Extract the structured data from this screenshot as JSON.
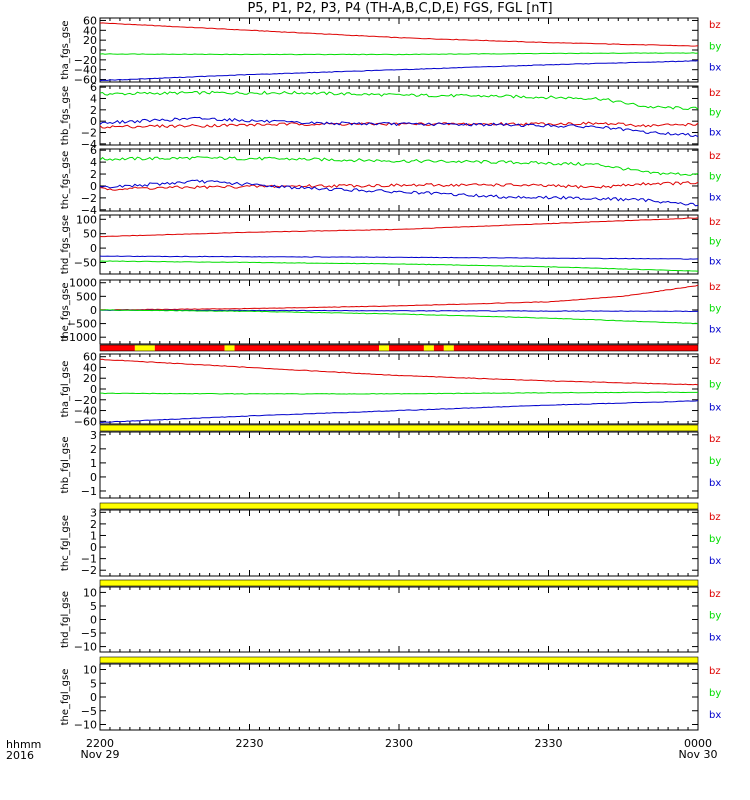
{
  "title": "P5, P1, P2, P3, P4 (TH-A,B,C,D,E) FGS, FGL [nT]",
  "colors": {
    "bz": "#dd0000",
    "by": "#00dd00",
    "bx": "#0000cc",
    "flag_red": "#ff0000",
    "flag_yellow": "#ffff00"
  },
  "legend": [
    "bz",
    "by",
    "bx"
  ],
  "x_axis": {
    "row_label_1": "hhmm",
    "row_label_2": "2016",
    "ticks": [
      {
        "t": 0,
        "label": "2200",
        "date": "Nov 29"
      },
      {
        "t": 30,
        "label": "2230",
        "date": ""
      },
      {
        "t": 60,
        "label": "2300",
        "date": ""
      },
      {
        "t": 90,
        "label": "2330",
        "date": ""
      },
      {
        "t": 120,
        "label": "0000",
        "date": "Nov 30"
      }
    ]
  },
  "chart_data": [
    {
      "type": "line",
      "ylabel": "tha_fgs_gse",
      "ylim": [
        -65,
        65
      ],
      "yticks": [
        60,
        40,
        20,
        0,
        -20,
        -40,
        -60
      ],
      "yticklabels": [
        "60",
        "40",
        "20",
        "0",
        "−20",
        "−40",
        "−60"
      ],
      "series": [
        {
          "name": "bz",
          "x": [
            0,
            30,
            60,
            90,
            120
          ],
          "y": [
            55,
            40,
            25,
            15,
            8
          ]
        },
        {
          "name": "by",
          "x": [
            0,
            30,
            60,
            90,
            120
          ],
          "y": [
            -8,
            -9,
            -9,
            -7,
            -6
          ]
        },
        {
          "name": "bx",
          "x": [
            0,
            30,
            60,
            90,
            120
          ],
          "y": [
            -62,
            -50,
            -40,
            -30,
            -22
          ]
        }
      ]
    },
    {
      "type": "line",
      "ylabel": "thb_fgs_gse",
      "ylim": [
        -4.2,
        6.2
      ],
      "yticks": [
        6,
        4,
        2,
        0,
        -2,
        -4
      ],
      "yticklabels": [
        "6",
        "4",
        "2",
        "0",
        "−2",
        "−4"
      ],
      "series": [
        {
          "name": "by",
          "x": [
            0,
            20,
            40,
            60,
            80,
            100,
            110,
            120
          ],
          "y": [
            4.8,
            5.0,
            5.0,
            4.6,
            4.4,
            4.0,
            2.5,
            2.2
          ]
        },
        {
          "name": "bz",
          "x": [
            0,
            20,
            40,
            60,
            80,
            100,
            110,
            120
          ],
          "y": [
            -1.0,
            -0.8,
            -0.5,
            -0.5,
            -0.5,
            -0.4,
            -0.8,
            -0.5
          ]
        },
        {
          "name": "bx",
          "x": [
            0,
            20,
            40,
            60,
            80,
            100,
            110,
            120
          ],
          "y": [
            -0.3,
            0.5,
            -0.3,
            -0.5,
            -0.6,
            -1.0,
            -2.0,
            -2.5
          ]
        }
      ]
    },
    {
      "type": "line",
      "ylabel": "thc_fgs_gse",
      "ylim": [
        -4.2,
        6.2
      ],
      "yticks": [
        6,
        4,
        2,
        0,
        -2,
        -4
      ],
      "yticklabels": [
        "6",
        "4",
        "2",
        "0",
        "−2",
        "−4"
      ],
      "series": [
        {
          "name": "by",
          "x": [
            0,
            20,
            40,
            60,
            80,
            100,
            110,
            120
          ],
          "y": [
            4.5,
            4.7,
            4.5,
            4.2,
            4.0,
            3.6,
            2.2,
            1.9
          ]
        },
        {
          "name": "bz",
          "x": [
            0,
            20,
            40,
            60,
            80,
            100,
            110,
            120
          ],
          "y": [
            -0.5,
            -0.2,
            0.0,
            0.1,
            0.2,
            -0.2,
            0.4,
            0.5
          ]
        },
        {
          "name": "bx",
          "x": [
            0,
            20,
            40,
            60,
            80,
            100,
            110,
            120
          ],
          "y": [
            -0.3,
            0.8,
            -0.3,
            -1.0,
            -1.8,
            -2.1,
            -2.4,
            -3.2
          ]
        }
      ]
    },
    {
      "type": "line",
      "ylabel": "thd_fgs_gse",
      "ylim": [
        -90,
        115
      ],
      "yticks": [
        100,
        50,
        0,
        -50
      ],
      "yticklabels": [
        "100",
        "50",
        "0",
        "−50"
      ],
      "series": [
        {
          "name": "bz",
          "x": [
            0,
            30,
            60,
            90,
            120
          ],
          "y": [
            40,
            55,
            65,
            85,
            105
          ]
        },
        {
          "name": "bx",
          "x": [
            0,
            30,
            60,
            90,
            120
          ],
          "y": [
            -28,
            -30,
            -32,
            -35,
            -38
          ]
        },
        {
          "name": "by",
          "x": [
            0,
            30,
            60,
            90,
            120
          ],
          "y": [
            -45,
            -50,
            -55,
            -65,
            -80
          ]
        }
      ]
    },
    {
      "type": "line",
      "ylabel": "the_fgs_gse",
      "ylim": [
        -1250,
        1100
      ],
      "yticks": [
        1000,
        500,
        0,
        -500,
        -1000
      ],
      "yticklabels": [
        "1000",
        "500",
        "0",
        "−500",
        "−1000"
      ],
      "series": [
        {
          "name": "bz",
          "x": [
            0,
            30,
            60,
            90,
            105,
            120
          ],
          "y": [
            0,
            50,
            150,
            300,
            500,
            900
          ]
        },
        {
          "name": "bx",
          "x": [
            0,
            30,
            60,
            90,
            120
          ],
          "y": [
            -10,
            -20,
            -30,
            -40,
            -50
          ]
        },
        {
          "name": "by",
          "x": [
            0,
            30,
            60,
            90,
            120
          ],
          "y": [
            0,
            -50,
            -150,
            -300,
            -500
          ]
        }
      ]
    },
    {
      "type": "line",
      "ylabel": "tha_fgl_gse",
      "ylim": [
        -65,
        65
      ],
      "yticks": [
        60,
        40,
        20,
        0,
        -20,
        -40,
        -60
      ],
      "yticklabels": [
        "60",
        "40",
        "20",
        "0",
        "−20",
        "−40",
        "−60"
      ],
      "series": [
        {
          "name": "bz",
          "x": [
            0,
            30,
            60,
            90,
            120
          ],
          "y": [
            55,
            40,
            25,
            15,
            8
          ]
        },
        {
          "name": "by",
          "x": [
            0,
            30,
            60,
            90,
            120
          ],
          "y": [
            -8,
            -9,
            -9,
            -7,
            -6
          ]
        },
        {
          "name": "bx",
          "x": [
            0,
            30,
            60,
            90,
            120
          ],
          "y": [
            -62,
            -50,
            -40,
            -30,
            -22
          ]
        }
      ]
    },
    {
      "type": "line",
      "ylabel": "thb_fgl_gse",
      "ylim": [
        -1.5,
        3.2
      ],
      "yticks": [
        3,
        2,
        1,
        0,
        -1
      ],
      "yticklabels": [
        "3",
        "2",
        "1",
        "0",
        "−1"
      ],
      "series": []
    },
    {
      "type": "line",
      "ylabel": "thc_fgl_gse",
      "ylim": [
        -2.5,
        3.2
      ],
      "yticks": [
        3,
        2,
        1,
        0,
        -1,
        -2
      ],
      "yticklabels": [
        "3",
        "2",
        "1",
        "0",
        "−1",
        "−2"
      ],
      "series": []
    },
    {
      "type": "line",
      "ylabel": "thd_fgl_gse",
      "ylim": [
        -12,
        12
      ],
      "yticks": [
        10,
        5,
        0,
        -5,
        -10
      ],
      "yticklabels": [
        "10",
        "5",
        "0",
        "−5",
        "−10"
      ],
      "series": []
    },
    {
      "type": "line",
      "ylabel": "the_fgl_gse",
      "ylim": [
        -12,
        12
      ],
      "yticks": [
        10,
        5,
        0,
        -5,
        -10
      ],
      "yticklabels": [
        "10",
        "5",
        "0",
        "−5",
        "−10"
      ],
      "series": []
    }
  ],
  "flag_bars": [
    {
      "segments": [
        {
          "from": 0,
          "to": 7,
          "color": "red"
        },
        {
          "from": 7,
          "to": 11,
          "color": "yellow"
        },
        {
          "from": 11,
          "to": 25,
          "color": "red"
        },
        {
          "from": 25,
          "to": 27,
          "color": "yellow"
        },
        {
          "from": 27,
          "to": 56,
          "color": "red"
        },
        {
          "from": 56,
          "to": 58,
          "color": "yellow"
        },
        {
          "from": 58,
          "to": 65,
          "color": "red"
        },
        {
          "from": 65,
          "to": 67,
          "color": "yellow"
        },
        {
          "from": 67,
          "to": 69,
          "color": "red"
        },
        {
          "from": 69,
          "to": 71,
          "color": "yellow"
        },
        {
          "from": 71,
          "to": 120,
          "color": "red"
        }
      ]
    },
    {
      "segments": [
        {
          "from": 0,
          "to": 120,
          "color": "yellow"
        }
      ]
    },
    {
      "segments": [
        {
          "from": 0,
          "to": 120,
          "color": "yellow"
        }
      ]
    },
    {
      "segments": [
        {
          "from": 0,
          "to": 120,
          "color": "yellow"
        }
      ]
    },
    {
      "segments": [
        {
          "from": 0,
          "to": 120,
          "color": "yellow"
        }
      ]
    }
  ]
}
